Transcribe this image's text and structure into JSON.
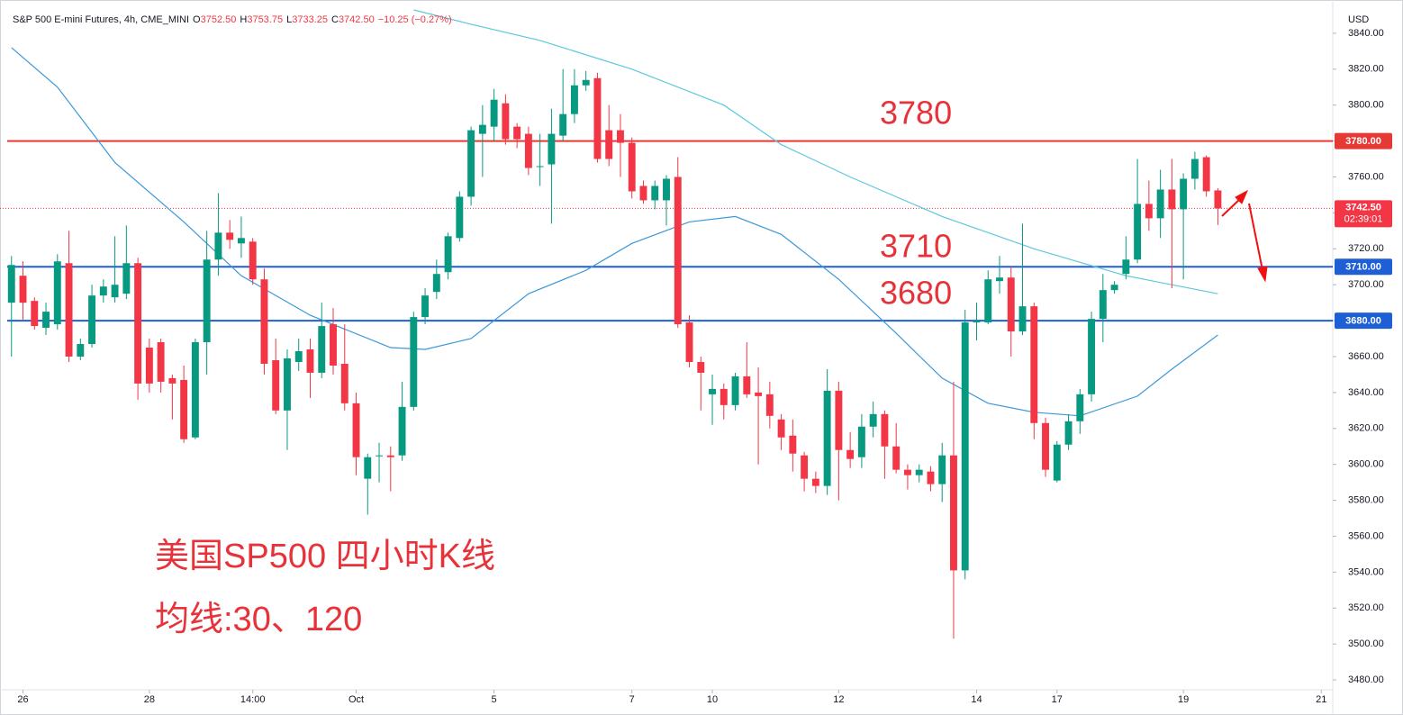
{
  "chart_data": {
    "type": "candlestick",
    "title": "S&P 500 E-mini Futures, 4h, CME_MINI",
    "ohlc_header": [
      {
        "label": "O",
        "value": "3752.50"
      },
      {
        "label": "H",
        "value": "3753.75"
      },
      {
        "label": "L",
        "value": "3733.25"
      },
      {
        "label": "C",
        "value": "3742.50"
      }
    ],
    "change": "−10.25 (−0.27%)",
    "currency": "USD",
    "up_color": "#089981",
    "down_color": "#f23645",
    "x": [
      0,
      1,
      2,
      3,
      4,
      5,
      6,
      7,
      8,
      9,
      10,
      11,
      12,
      13,
      14,
      15,
      16,
      17,
      18,
      19,
      20,
      21,
      22,
      23,
      24,
      25,
      26,
      27,
      28,
      29,
      30,
      31,
      32,
      33,
      34,
      35,
      36,
      37,
      38,
      39,
      40,
      41,
      42,
      43,
      44,
      45,
      46,
      47,
      48,
      49,
      50,
      51,
      52,
      53,
      54,
      55,
      56,
      57,
      58,
      59,
      60,
      61,
      62,
      63,
      64,
      65,
      66,
      67,
      68,
      69,
      70,
      71,
      72,
      73,
      74,
      75,
      76,
      77,
      78,
      79,
      80,
      81,
      82,
      83,
      84,
      85,
      86,
      87,
      88,
      89,
      90,
      91,
      92,
      93,
      94,
      95,
      96,
      97,
      98,
      99,
      100,
      101,
      102,
      103,
      104,
      105
    ],
    "open": [
      3690,
      3705,
      3691,
      3676,
      3678,
      3712,
      3660,
      3667,
      3694,
      3693,
      3695,
      3712,
      3665,
      3668,
      3648,
      3647,
      3615,
      3668,
      3714,
      3729,
      3723,
      3724,
      3703,
      3658,
      3630,
      3657,
      3664,
      3651,
      3678,
      3656,
      3634,
      3592,
      3605,
      3605,
      3605,
      3632,
      3682,
      3696,
      3707,
      3726,
      3749,
      3784,
      3788,
      3801,
      3788,
      3784,
      3766,
      3767,
      3783,
      3795,
      3811,
      3815,
      3786,
      3786,
      3779,
      3755,
      3747,
      3747,
      3760,
      3679,
      3657,
      3639,
      3642,
      3633,
      3649,
      3640,
      3639,
      3625,
      3616,
      3605,
      3592,
      3588,
      3641,
      3608,
      3604,
      3621,
      3628,
      3610,
      3597,
      3594,
      3596,
      3589,
      3605,
      3541,
      3679,
      3679,
      3702,
      3704,
      3674,
      3688,
      3623,
      3591,
      3611,
      3624,
      3639,
      3681,
      3697,
      3706,
      3714,
      3745,
      3737,
      3753,
      3742,
      3759,
      3771,
      3752.5
    ],
    "high": [
      3716,
      3713,
      3693,
      3690,
      3717,
      3730,
      3670,
      3700,
      3703,
      3727,
      3733,
      3715,
      3670,
      3670,
      3650,
      3655,
      3670,
      3730,
      3751,
      3736,
      3738,
      3726,
      3709,
      3670,
      3664,
      3670,
      3670,
      3690,
      3687,
      3678,
      3640,
      3606,
      3612,
      3610,
      3646,
      3685,
      3698,
      3714,
      3729,
      3752,
      3788,
      3800,
      3809,
      3806,
      3790,
      3788,
      3784,
      3798,
      3820,
      3820,
      3819,
      3818,
      3800,
      3795,
      3782,
      3758,
      3758,
      3761,
      3771,
      3683,
      3660,
      3650,
      3645,
      3651,
      3668,
      3654,
      3646,
      3628,
      3625,
      3607,
      3596,
      3653,
      3646,
      3618,
      3628,
      3635,
      3630,
      3623,
      3600,
      3600,
      3599,
      3612,
      3646,
      3686,
      3690,
      3708,
      3716,
      3710,
      3734,
      3690,
      3626,
      3613,
      3628,
      3642,
      3685,
      3706,
      3702,
      3727,
      3770,
      3758,
      3764,
      3770,
      3762,
      3774,
      3772,
      3753.75
    ],
    "low": [
      3660,
      3680,
      3675,
      3672,
      3675,
      3657,
      3658,
      3665,
      3690,
      3690,
      3692,
      3636,
      3640,
      3640,
      3625,
      3612,
      3614,
      3650,
      3705,
      3720,
      3715,
      3700,
      3650,
      3628,
      3608,
      3652,
      3637,
      3648,
      3650,
      3630,
      3594,
      3572,
      3590,
      3585,
      3602,
      3630,
      3678,
      3692,
      3703,
      3724,
      3744,
      3760,
      3780,
      3778,
      3776,
      3761,
      3755,
      3734,
      3780,
      3790,
      3808,
      3768,
      3766,
      3760,
      3748,
      3745,
      3742,
      3733,
      3676,
      3654,
      3630,
      3622,
      3625,
      3630,
      3637,
      3600,
      3620,
      3608,
      3596,
      3585,
      3584,
      3583,
      3580,
      3598,
      3598,
      3615,
      3592,
      3595,
      3586,
      3590,
      3585,
      3579,
      3503,
      3536,
      3669,
      3678,
      3695,
      3660,
      3672,
      3614,
      3593,
      3590,
      3608,
      3617,
      3635,
      3668,
      3695,
      3703,
      3712,
      3730,
      3726,
      3698,
      3703,
      3753,
      3749,
      3733.25
    ],
    "close": [
      3711,
      3690,
      3677,
      3685,
      3713,
      3660,
      3667,
      3694,
      3699,
      3700,
      3712,
      3645,
      3645,
      3646,
      3645,
      3614,
      3668,
      3714,
      3729,
      3725,
      3726,
      3703,
      3656,
      3630,
      3659,
      3663,
      3651,
      3677,
      3655,
      3634,
      3604,
      3604,
      3605,
      3604,
      3632,
      3682,
      3694,
      3706,
      3727,
      3749,
      3786,
      3789,
      3803,
      3781,
      3781,
      3765,
      3766,
      3784,
      3795,
      3811,
      3814,
      3770,
      3770,
      3779,
      3752,
      3747,
      3755,
      3759,
      3678,
      3657,
      3651,
      3642,
      3633,
      3649,
      3639,
      3638,
      3627,
      3615,
      3606,
      3592,
      3588,
      3641,
      3608,
      3603,
      3621,
      3628,
      3610,
      3597,
      3594,
      3597,
      3589,
      3605,
      3541,
      3679,
      3680,
      3703,
      3704,
      3674,
      3688,
      3623,
      3597,
      3611,
      3624,
      3639,
      3681,
      3697,
      3700,
      3714,
      3745,
      3737,
      3753,
      3742,
      3759,
      3770,
      3752,
      3742.5
    ],
    "series": [
      {
        "name": "MA120",
        "color": "#5bc8dc",
        "x": [
          35,
          40,
          46,
          54,
          62,
          67,
          73,
          81,
          89,
          97,
          105
        ],
        "values": [
          3853,
          3845,
          3836,
          3820,
          3800,
          3778,
          3760,
          3738,
          3720,
          3705,
          3695
        ]
      },
      {
        "name": "MA30",
        "color": "#3c98d8",
        "x": [
          0,
          4,
          9,
          15,
          20,
          26,
          33,
          36,
          40,
          45,
          50,
          54,
          59,
          63,
          67,
          72,
          77,
          81,
          85,
          89,
          93,
          98,
          101,
          105
        ],
        "values": [
          3832,
          3810,
          3768,
          3735,
          3705,
          3683,
          3665,
          3664,
          3670,
          3695,
          3708,
          3723,
          3735,
          3738,
          3728,
          3703,
          3673,
          3648,
          3634,
          3629,
          3627,
          3638,
          3653,
          3672
        ]
      }
    ],
    "levels": [
      {
        "value": 3780,
        "label": "3780.00",
        "color": "#e53935"
      },
      {
        "value": 3710,
        "label": "3710.00",
        "color": "#1e5fd6"
      },
      {
        "value": 3680,
        "label": "3680.00",
        "color": "#1e5fd6"
      }
    ],
    "last_price": {
      "value": 3742.5,
      "label": "3742.50",
      "countdown": "02:39:01",
      "color": "#f23645"
    },
    "annotations": [
      "3780",
      "3710",
      "3680"
    ],
    "notes": [
      "美国SP500 四小时K线",
      "均线:30、120"
    ],
    "xlim": [
      -1,
      115
    ],
    "xticks": [
      {
        "value": 1,
        "label": "26"
      },
      {
        "value": 12,
        "label": "28"
      },
      {
        "value": 21,
        "label": "14:00"
      },
      {
        "value": 30,
        "label": "Oct"
      },
      {
        "value": 42,
        "label": "5"
      },
      {
        "value": 54,
        "label": "7"
      },
      {
        "value": 61,
        "label": "10"
      },
      {
        "value": 72,
        "label": "12"
      },
      {
        "value": 84,
        "label": "14"
      },
      {
        "value": 91,
        "label": "17"
      },
      {
        "value": 102,
        "label": "19"
      },
      {
        "value": 114,
        "label": "21"
      }
    ],
    "ylim": [
      3470,
      3856
    ],
    "yticks": [
      {
        "value": 3480,
        "label": "3480.00"
      },
      {
        "value": 3500,
        "label": "3500.00"
      },
      {
        "value": 3520,
        "label": "3520.00"
      },
      {
        "value": 3540,
        "label": "3540.00"
      },
      {
        "value": 3560,
        "label": "3560.00"
      },
      {
        "value": 3580,
        "label": "3580.00"
      },
      {
        "value": 3600,
        "label": "3600.00"
      },
      {
        "value": 3620,
        "label": "3620.00"
      },
      {
        "value": 3640,
        "label": "3640.00"
      },
      {
        "value": 3660,
        "label": "3660.00"
      },
      {
        "value": 3680,
        "label": "3680.00"
      },
      {
        "value": 3700,
        "label": "3700.00"
      },
      {
        "value": 3720,
        "label": "3720.00"
      },
      {
        "value": 3740,
        "label": "3740.00"
      },
      {
        "value": 3760,
        "label": "3760.00"
      },
      {
        "value": 3780,
        "label": "3780.00"
      },
      {
        "value": 3800,
        "label": "3800.00"
      },
      {
        "value": 3820,
        "label": "3820.00"
      },
      {
        "value": 3840,
        "label": "3840.00"
      }
    ],
    "grid": false
  }
}
